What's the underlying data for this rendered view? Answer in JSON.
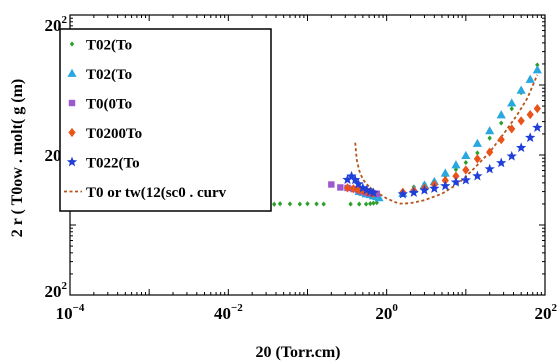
{
  "chart_data": {
    "type": "scatter",
    "xscale": "log",
    "yscale": "log",
    "xlim": [
      0.0001,
      100
    ],
    "ylim": [
      0.01,
      100
    ],
    "xlabel": "20 (Torr.cm)",
    "ylabel": "2 r  ( T0ow .  molt( g  (m)",
    "x_ticks": [
      {
        "value": 0.0001,
        "base": "10",
        "exp": "−4"
      },
      {
        "value": 0.01,
        "base": "40",
        "exp": "−2"
      },
      {
        "value": 1,
        "base": "20",
        "exp": "0"
      },
      {
        "value": 100,
        "base": "20",
        "exp": "2"
      }
    ],
    "y_ticks": [
      {
        "value": 0.01,
        "base": "20",
        "exp": "2"
      },
      {
        "value": 1,
        "base": "20",
        "exp": "2"
      },
      {
        "value": 100,
        "base": "20",
        "exp": "2"
      }
    ],
    "legend_position": "top-left",
    "series": [
      {
        "name": "T02(To",
        "marker": "diamond-small",
        "color": "#2ca02c",
        "points": [
          [
            0.004,
            0.222
          ],
          [
            0.007,
            0.21
          ],
          [
            0.01,
            0.202
          ],
          [
            0.014,
            0.198
          ],
          [
            0.02,
            0.2
          ],
          [
            0.03,
            0.196
          ],
          [
            0.038,
            0.198
          ],
          [
            0.045,
            0.201
          ],
          [
            0.06,
            0.2
          ],
          [
            0.08,
            0.199
          ],
          [
            0.1,
            0.201
          ],
          [
            0.13,
            0.2
          ],
          [
            0.16,
            0.199
          ],
          [
            0.35,
            0.199
          ],
          [
            0.45,
            0.199
          ],
          [
            0.55,
            0.199
          ],
          [
            0.62,
            0.202
          ],
          [
            0.68,
            0.205
          ],
          [
            0.75,
            0.209
          ],
          [
            1.6,
            0.303
          ],
          [
            2.2,
            0.35
          ],
          [
            3.0,
            0.39
          ],
          [
            4.0,
            0.43
          ],
          [
            5.5,
            0.5
          ],
          [
            7.5,
            0.62
          ],
          [
            10,
            0.78
          ],
          [
            14,
            1.07
          ],
          [
            20,
            1.74
          ],
          [
            28,
            2.86
          ],
          [
            38,
            4.57
          ],
          [
            50,
            7.78
          ],
          [
            65,
            12.4
          ],
          [
            80,
            19.3
          ]
        ]
      },
      {
        "name": "T02(To",
        "marker": "triangle",
        "color": "#29a8e0",
        "points": [
          [
            0.45,
            0.3
          ],
          [
            0.5,
            0.291
          ],
          [
            0.55,
            0.277
          ],
          [
            0.62,
            0.271
          ],
          [
            0.68,
            0.26
          ],
          [
            0.75,
            0.255
          ],
          [
            0.8,
            0.244
          ],
          [
            1.6,
            0.282
          ],
          [
            2.2,
            0.322
          ],
          [
            3.0,
            0.371
          ],
          [
            4.0,
            0.415
          ],
          [
            5.5,
            0.55
          ],
          [
            7.5,
            0.72
          ],
          [
            10,
            0.98
          ],
          [
            14,
            1.46
          ],
          [
            20,
            2.21
          ],
          [
            28,
            3.73
          ],
          [
            38,
            5.51
          ],
          [
            50,
            8.4
          ],
          [
            65,
            12.0
          ],
          [
            80,
            16.4
          ]
        ]
      },
      {
        "name": "T0(0To",
        "marker": "square",
        "color": "#9b59d0",
        "points": [
          [
            0.2,
            0.379
          ],
          [
            0.26,
            0.344
          ],
          [
            0.32,
            0.338
          ],
          [
            0.38,
            0.326
          ],
          [
            0.44,
            0.315
          ],
          [
            0.5,
            0.3
          ],
          [
            0.56,
            0.287
          ],
          [
            0.62,
            0.282
          ],
          [
            0.68,
            0.284
          ],
          [
            0.75,
            0.28
          ]
        ]
      },
      {
        "name": "T0200To",
        "marker": "diamond",
        "color": "#e8541a",
        "points": [
          [
            0.32,
            0.339
          ],
          [
            0.38,
            0.33
          ],
          [
            0.44,
            0.316
          ],
          [
            0.5,
            0.306
          ],
          [
            0.56,
            0.301
          ],
          [
            0.62,
            0.29
          ],
          [
            0.68,
            0.283
          ],
          [
            1.6,
            0.294
          ],
          [
            2.2,
            0.31
          ],
          [
            3.0,
            0.336
          ],
          [
            4.0,
            0.378
          ],
          [
            5.5,
            0.432
          ],
          [
            7.5,
            0.5
          ],
          [
            10,
            0.61
          ],
          [
            14,
            0.88
          ],
          [
            20,
            1.1
          ],
          [
            28,
            1.66
          ],
          [
            38,
            2.36
          ],
          [
            50,
            3.07
          ],
          [
            65,
            3.77
          ],
          [
            80,
            4.6
          ]
        ]
      },
      {
        "name": "T022(To",
        "marker": "star",
        "color": "#1f3fd8",
        "points": [
          [
            0.32,
            0.444
          ],
          [
            0.36,
            0.497
          ],
          [
            0.4,
            0.442
          ],
          [
            0.44,
            0.384
          ],
          [
            0.5,
            0.338
          ],
          [
            0.56,
            0.316
          ],
          [
            0.62,
            0.3
          ],
          [
            0.68,
            0.288
          ],
          [
            1.6,
            0.276
          ],
          [
            2.2,
            0.29
          ],
          [
            3.0,
            0.313
          ],
          [
            4.0,
            0.332
          ],
          [
            5.5,
            0.361
          ],
          [
            7.5,
            0.408
          ],
          [
            10,
            0.437
          ],
          [
            14,
            0.5
          ],
          [
            20,
            0.63
          ],
          [
            28,
            0.77
          ],
          [
            38,
            0.96
          ],
          [
            50,
            1.27
          ],
          [
            65,
            1.77
          ],
          [
            80,
            2.46
          ]
        ]
      }
    ],
    "fit_line": {
      "name": "T0 or tw(12(sc0 . curv",
      "color": "#b5541c",
      "style": "dotted",
      "points": [
        [
          0.4,
          1.5
        ],
        [
          0.42,
          0.85
        ],
        [
          0.45,
          0.6
        ],
        [
          0.5,
          0.45
        ],
        [
          0.6,
          0.35
        ],
        [
          0.75,
          0.29
        ],
        [
          1.0,
          0.24
        ],
        [
          1.3,
          0.21
        ],
        [
          1.5,
          0.202
        ],
        [
          2.0,
          0.205
        ],
        [
          3.0,
          0.226
        ],
        [
          5.0,
          0.28
        ],
        [
          8.0,
          0.39
        ],
        [
          12,
          0.6
        ],
        [
          20,
          1.1
        ],
        [
          30,
          2.0
        ],
        [
          45,
          3.8
        ],
        [
          60,
          6.5
        ],
        [
          80,
          14.0
        ]
      ]
    }
  }
}
